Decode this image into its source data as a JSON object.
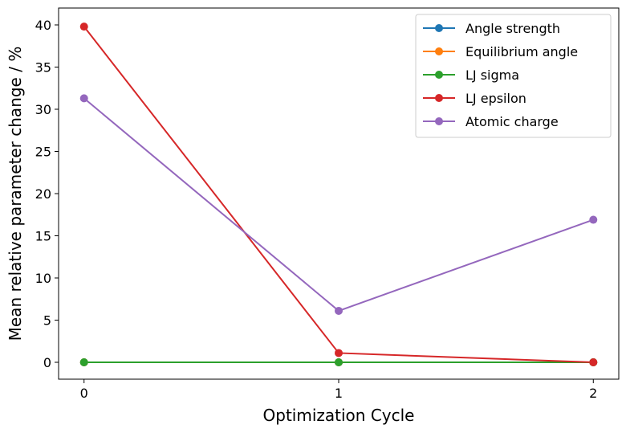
{
  "chart_data": {
    "type": "line",
    "title": "",
    "xlabel": "Optimization Cycle",
    "ylabel": "Mean relative parameter change / %",
    "x": [
      0,
      1,
      2
    ],
    "xticks": [
      0,
      1,
      2
    ],
    "xticklabels": [
      "0",
      "1",
      "2"
    ],
    "xlim": [
      -0.1,
      2.1
    ],
    "yticks": [
      0,
      5,
      10,
      15,
      20,
      25,
      30,
      35,
      40
    ],
    "yticklabels": [
      "0",
      "5",
      "10",
      "15",
      "20",
      "25",
      "30",
      "35",
      "40"
    ],
    "ylim": [
      -2,
      42
    ],
    "grid": false,
    "legend_position": "top-right",
    "series": [
      {
        "name": "Angle strength",
        "color": "#1f77b4",
        "values": [
          0.0,
          0.0,
          0.0
        ]
      },
      {
        "name": "Equilibrium angle",
        "color": "#ff7f0e",
        "values": [
          0.0,
          0.0,
          0.0
        ]
      },
      {
        "name": "LJ sigma",
        "color": "#2ca02c",
        "values": [
          0.0,
          0.0,
          0.0
        ]
      },
      {
        "name": "LJ epsilon",
        "color": "#d62728",
        "values": [
          39.8,
          1.1,
          0.0
        ]
      },
      {
        "name": "Atomic charge",
        "color": "#9467bd",
        "values": [
          31.3,
          6.1,
          16.9
        ]
      }
    ]
  }
}
